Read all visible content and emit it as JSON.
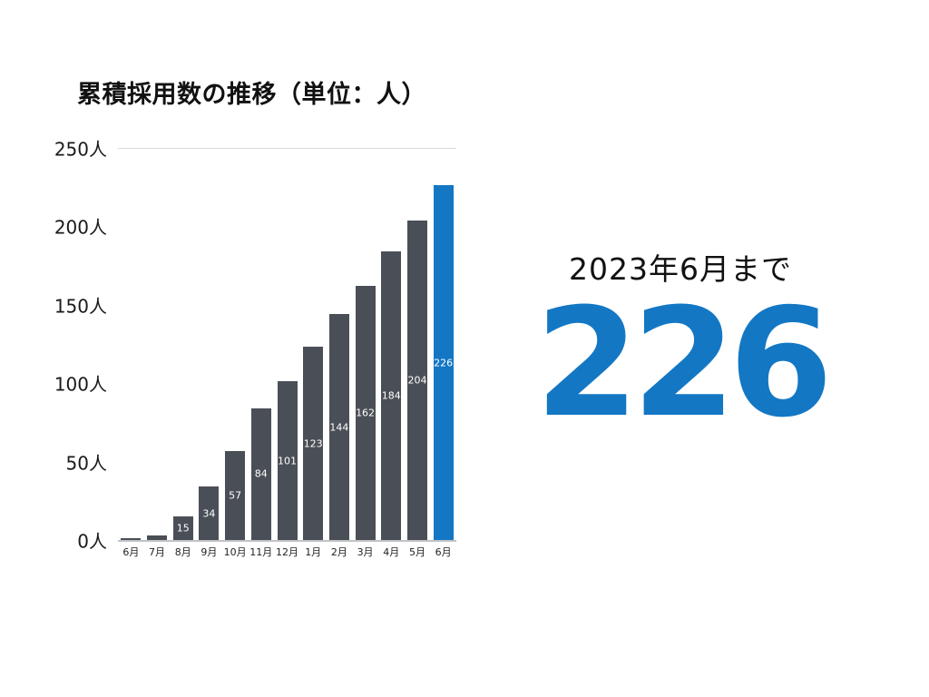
{
  "chart_data": {
    "type": "bar",
    "title": "累積採用数の推移（単位：人）",
    "categories": [
      "6月",
      "7月",
      "8月",
      "9月",
      "10月",
      "11月",
      "12月",
      "1月",
      "2月",
      "3月",
      "4月",
      "5月",
      "6月"
    ],
    "values": [
      1,
      3,
      15,
      34,
      57,
      84,
      101,
      123,
      144,
      162,
      184,
      204,
      226
    ],
    "value_labels": [
      "",
      "",
      "15",
      "34",
      "57",
      "84",
      "101",
      "123",
      "144",
      "162",
      "184",
      "204",
      "226"
    ],
    "xlabel": "",
    "ylabel": "",
    "ylim": [
      0,
      250
    ],
    "yticks": [
      {
        "value": 250,
        "label": "250人"
      },
      {
        "value": 200,
        "label": "200人"
      },
      {
        "value": 150,
        "label": "150人"
      },
      {
        "value": 100,
        "label": "100人"
      },
      {
        "value": 50,
        "label": "50人"
      },
      {
        "value": 0,
        "label": "0人"
      }
    ],
    "bar_color": "#4a4f57",
    "highlight_index": 12,
    "highlight_color": "#1377c4",
    "value_label_color": "#ffffff",
    "grid": "top-line-only",
    "legend": "none"
  },
  "highlight": {
    "caption": "2023年6月まで",
    "value": "226",
    "color": "#1377c4"
  }
}
